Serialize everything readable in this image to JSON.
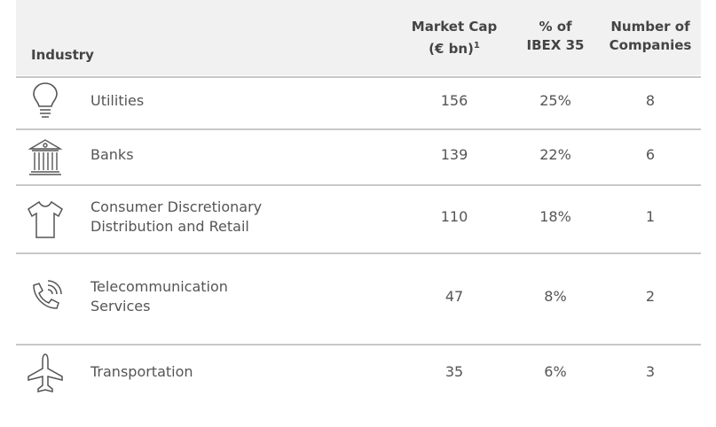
{
  "table": {
    "header": [
      [
        "Industry"
      ],
      [
        "Market Cap",
        "(€ bn)",
        "1"
      ],
      [
        "% of",
        "IBEX 35"
      ],
      [
        "Number of",
        "Companies"
      ]
    ],
    "rows": [
      {
        "industry": [
          "Utilities"
        ],
        "market_cap": "156",
        "share": "25%",
        "companies": "8"
      },
      {
        "industry": [
          "Banks"
        ],
        "market_cap": "139",
        "share": "22%",
        "companies": "6"
      },
      {
        "industry": [
          "Consumer Discretionary",
          "Distribution and Retail"
        ],
        "market_cap": "110",
        "share": "18%",
        "companies": "1"
      },
      {
        "industry": [
          "Telecommunication",
          "Services"
        ],
        "market_cap": "47",
        "share": "8%",
        "companies": "2"
      },
      {
        "industry": [
          "Transportation"
        ],
        "market_cap": "35",
        "share": "6%",
        "companies": "3"
      }
    ]
  }
}
